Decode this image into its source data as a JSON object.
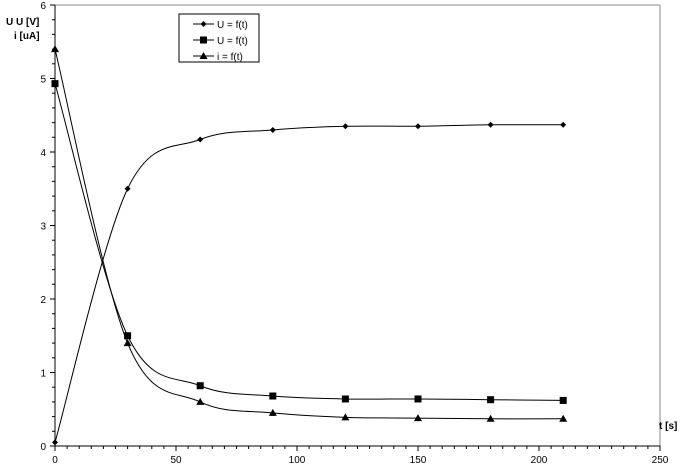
{
  "chart_data": {
    "type": "line",
    "title": "",
    "ylabel_lines": [
      "U  U  [V]",
      "i [uA]"
    ],
    "xlabel": "t [s]",
    "xlim": [
      0,
      250
    ],
    "ylim": [
      0,
      6
    ],
    "x_ticks": [
      0,
      50,
      100,
      150,
      200,
      250
    ],
    "y_ticks": [
      0,
      1,
      2,
      3,
      4,
      5,
      6
    ],
    "grid": false,
    "legend_position": "top-center",
    "x": [
      0,
      30,
      60,
      90,
      120,
      150,
      180,
      210
    ],
    "series": [
      {
        "name": "U = f(t)",
        "marker": "diamond",
        "values": [
          0.05,
          3.5,
          4.17,
          4.3,
          4.35,
          4.35,
          4.37,
          4.37
        ]
      },
      {
        "name": "U = f(t)",
        "marker": "square",
        "values": [
          4.93,
          1.5,
          0.82,
          0.68,
          0.64,
          0.64,
          0.63,
          0.62
        ]
      },
      {
        "name": "i = f(t)",
        "marker": "triangle",
        "values": [
          5.4,
          1.4,
          0.6,
          0.45,
          0.39,
          0.38,
          0.37,
          0.37
        ]
      }
    ],
    "color": "#000000"
  }
}
